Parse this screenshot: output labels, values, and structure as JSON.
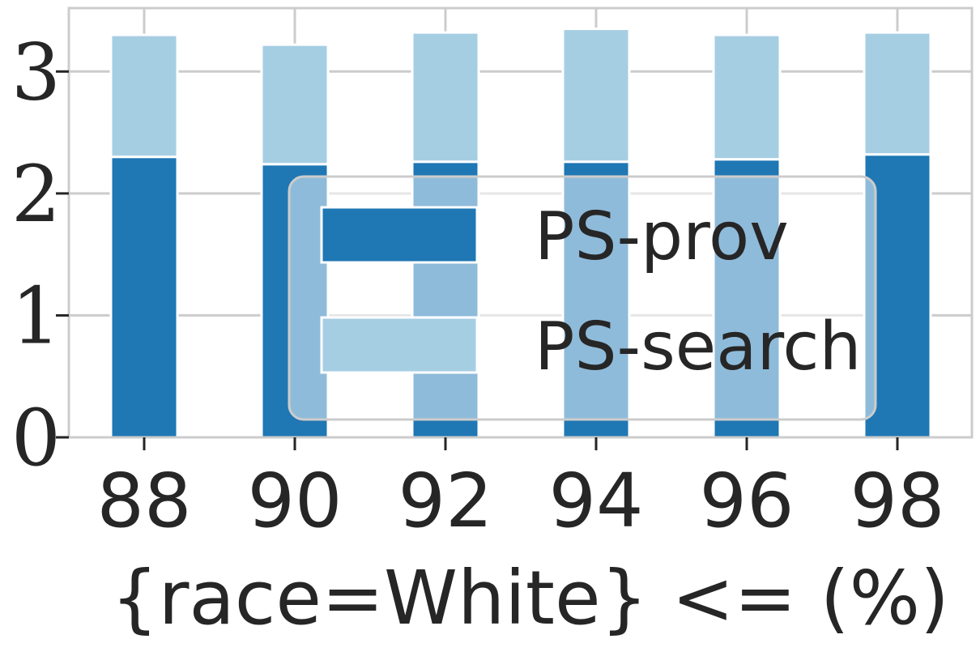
{
  "chart_data": {
    "type": "bar",
    "stacked": true,
    "categories": [
      "88",
      "90",
      "92",
      "94",
      "96",
      "98"
    ],
    "series": [
      {
        "name": "PS-prov",
        "color": "#1f77b4",
        "values": [
          2.3,
          2.24,
          2.26,
          2.26,
          2.28,
          2.32
        ]
      },
      {
        "name": "PS-search",
        "color": "#a6cee3",
        "values": [
          1.0,
          0.98,
          1.06,
          1.09,
          1.02,
          1.0
        ]
      }
    ],
    "title": "",
    "xlabel": "{race=White} <= (%)",
    "ylabel": "",
    "ylim": [
      0,
      3.52
    ],
    "yticks": [
      "0",
      "1",
      "2",
      "3"
    ],
    "grid": true,
    "legend_position": "lower-right"
  }
}
